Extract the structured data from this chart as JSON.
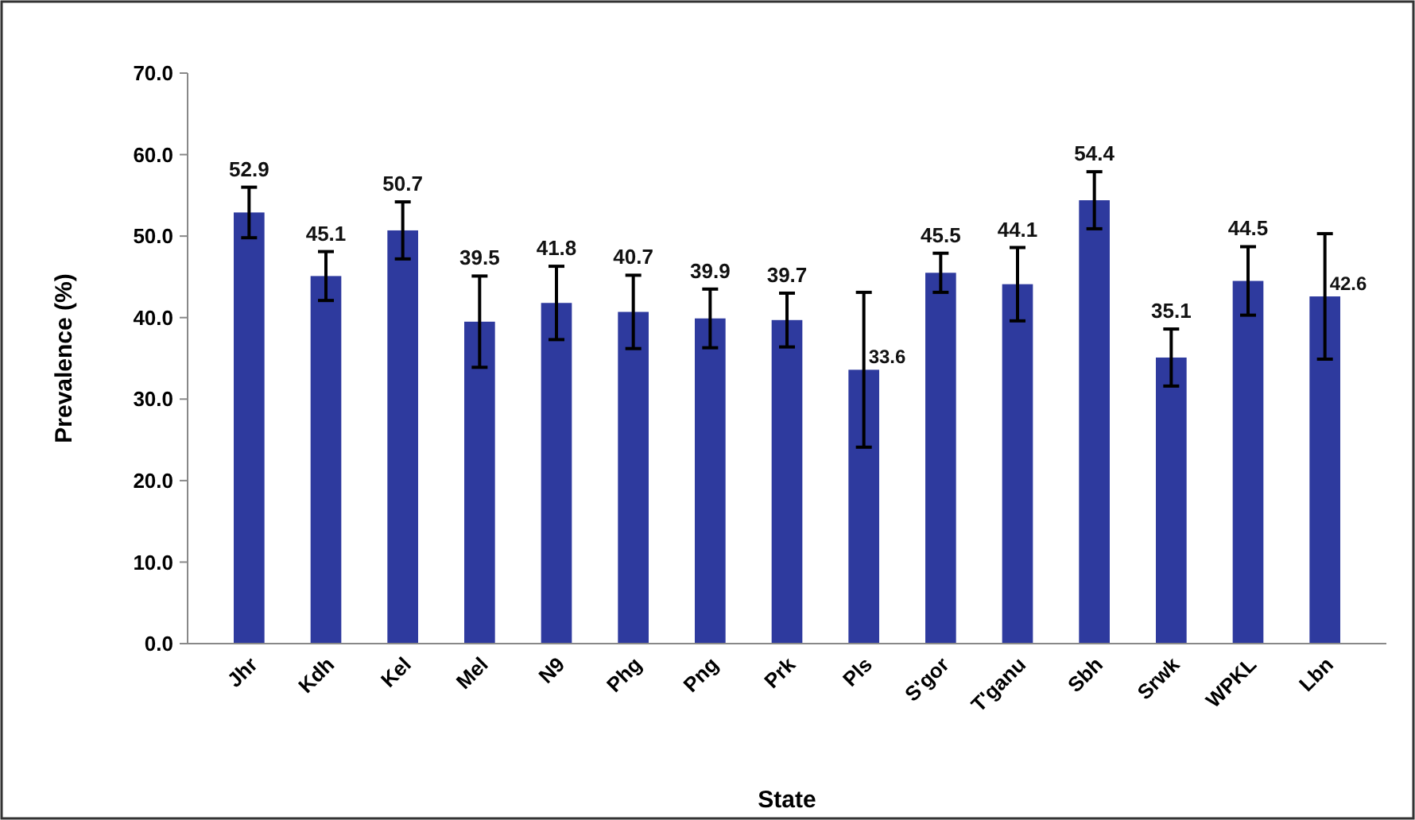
{
  "chart_data": {
    "type": "bar",
    "xlabel": "State",
    "ylabel": "Prevalence (%)",
    "categories": [
      "Jhr",
      "Kdh",
      "Kel",
      "Mel",
      "N9",
      "Phg",
      "Png",
      "Prk",
      "Pls",
      "S'gor",
      "T'ganu",
      "Sbh",
      "Srwk",
      "WPKL",
      "Lbn"
    ],
    "values": [
      52.9,
      45.1,
      50.7,
      39.5,
      41.8,
      40.7,
      39.9,
      39.7,
      33.6,
      45.5,
      44.1,
      54.4,
      35.1,
      44.5,
      42.6
    ],
    "errors": [
      3.1,
      3.0,
      3.5,
      5.6,
      4.5,
      4.5,
      3.6,
      3.3,
      9.5,
      2.4,
      4.5,
      3.5,
      3.5,
      4.2,
      7.7
    ],
    "color": "#2e3a9e",
    "data_labels": true,
    "grid": false,
    "legend": false,
    "ylim": [
      0,
      70
    ],
    "yticks": [
      {
        "value": 0,
        "label": "0.0"
      },
      {
        "value": 10,
        "label": "10.0"
      },
      {
        "value": 20,
        "label": "20.0"
      },
      {
        "value": 30,
        "label": "30.0"
      },
      {
        "value": 40,
        "label": "40.0"
      },
      {
        "value": 50,
        "label": "50.0"
      },
      {
        "value": 60,
        "label": "60.0"
      },
      {
        "value": 70,
        "label": "70.0"
      }
    ]
  }
}
